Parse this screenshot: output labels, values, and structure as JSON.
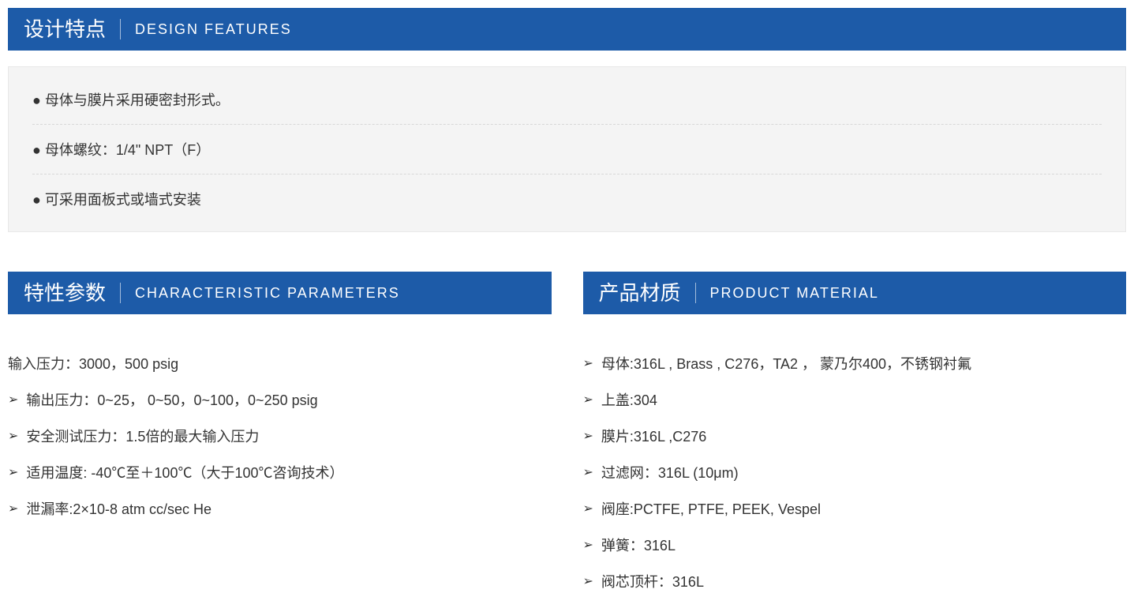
{
  "colors": {
    "header_bg": "#1d5ba8",
    "header_text": "#ffffff",
    "box_bg": "#f4f4f4",
    "body_text": "#333333"
  },
  "design_features": {
    "title_cn": "设计特点",
    "title_en": "DESIGN FEATURES",
    "items": [
      "● 母体与膜片采用硬密封形式。",
      "● 母体螺纹：1/4\" NPT（F）",
      "● 可采用面板式或墙式安装"
    ]
  },
  "characteristic_params": {
    "title_cn": "特性参数",
    "title_en": "CHARACTERISTIC PARAMETERS",
    "items": [
      {
        "arrow": false,
        "text": "输入压力：3000，500 psig"
      },
      {
        "arrow": true,
        "text": "输出压力：0~25， 0~50，0~100，0~250 psig"
      },
      {
        "arrow": true,
        "text": "安全测试压力：1.5倍的最大输入压力"
      },
      {
        "arrow": true,
        "text": "适用温度: -40℃至＋100℃（大于100℃咨询技术）"
      },
      {
        "arrow": true,
        "text": "泄漏率:2×10-8 atm cc/sec He"
      }
    ]
  },
  "product_material": {
    "title_cn": "产品材质",
    "title_en": "PRODUCT MATERIAL",
    "items": [
      {
        "arrow": true,
        "text": "母体:316L , Brass , C276，TA2 ， 蒙乃尔400，不锈钢衬氟"
      },
      {
        "arrow": true,
        "text": "上盖:304"
      },
      {
        "arrow": true,
        "text": "膜片:316L ,C276"
      },
      {
        "arrow": true,
        "text": "过滤网：316L (10μm)"
      },
      {
        "arrow": true,
        "text": "阀座:PCTFE, PTFE, PEEK, Vespel"
      },
      {
        "arrow": true,
        "text": "弹簧：316L"
      },
      {
        "arrow": true,
        "text": "阀芯顶杆：316L"
      }
    ]
  }
}
